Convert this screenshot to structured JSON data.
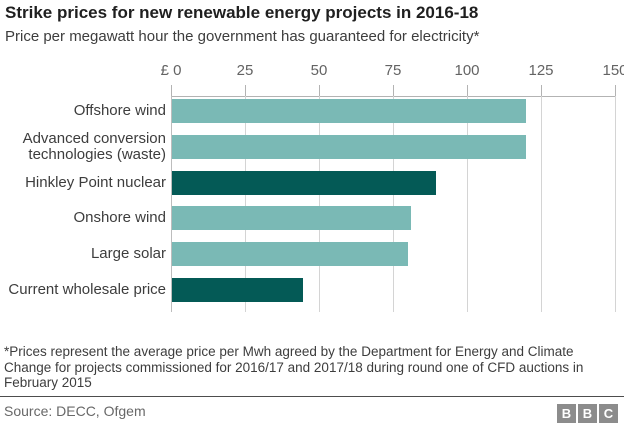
{
  "title": "Strike prices for new renewable energy projects in 2016-18",
  "subtitle": "Price per megawatt hour the government has guaranteed for electricity*",
  "chart_data": {
    "type": "bar",
    "orientation": "horizontal",
    "title": "Strike prices for new renewable energy projects in 2016-18",
    "subtitle": "Price per megawatt hour the government has guaranteed for electricity*",
    "categories": [
      "Offshore wind",
      "Advanced conversion technologies (waste)",
      "Hinkley Point nuclear",
      "Onshore wind",
      "Large solar",
      "Current wholesale price"
    ],
    "values": [
      120,
      120,
      89.5,
      81,
      80,
      44.5
    ],
    "bar_colors": [
      "#7ab9b5",
      "#7ab9b5",
      "#045a56",
      "#7ab9b5",
      "#7ab9b5",
      "#045a56"
    ],
    "axis": {
      "position": "top",
      "currency_prefix": "£",
      "ticks": [
        0,
        25,
        50,
        75,
        100,
        125,
        150
      ]
    },
    "xlim": [
      0,
      150
    ],
    "grid": true,
    "legend": "none",
    "colors": {
      "bar_light_teal": "#7ab9b5",
      "bar_dark_teal": "#045a56",
      "gridline": "#d4d4d4",
      "axis": "#b3b3b3"
    }
  },
  "footnote": "*Prices represent the average price per Mwh agreed by the Department for Energy and Climate Change for projects commissioned for 2016/17 and 2017/18 during round one of CFD auctions in February 2015",
  "source": "Source: DECC, Ofgem",
  "logo": {
    "letters": [
      "B",
      "B",
      "C"
    ]
  }
}
